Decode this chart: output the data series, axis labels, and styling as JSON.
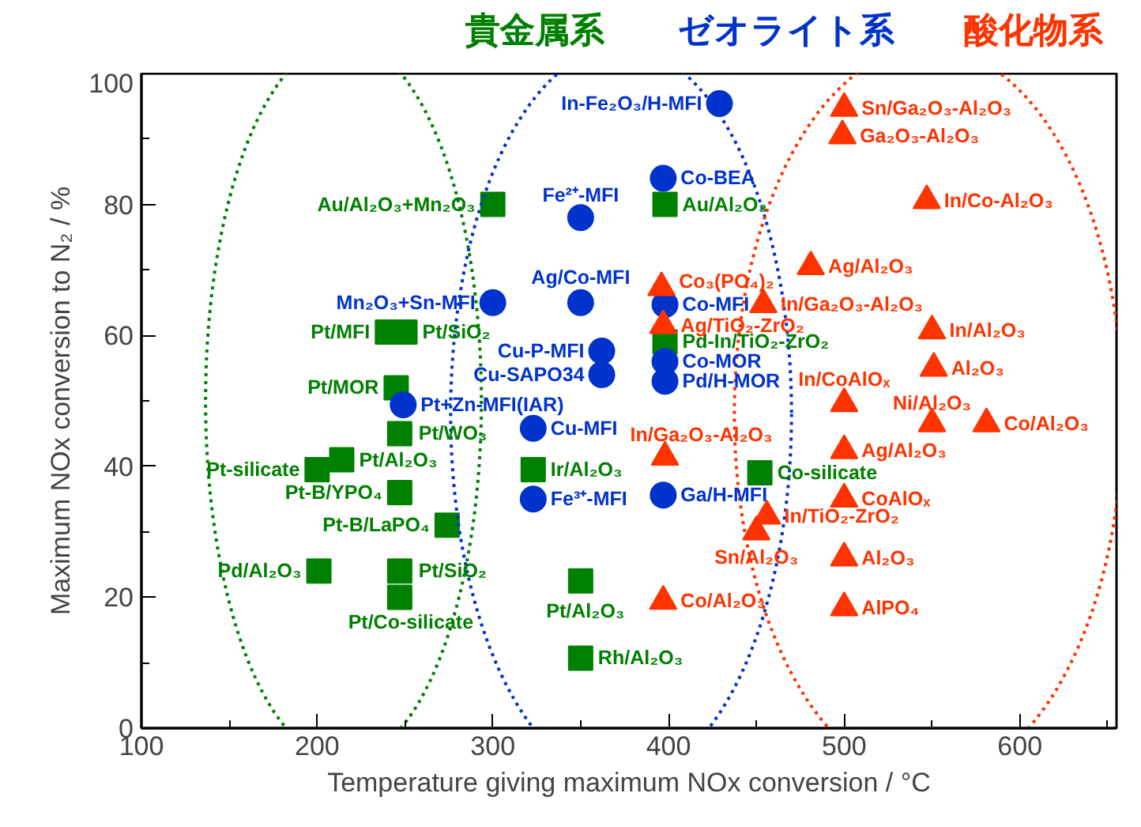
{
  "chart_data": {
    "type": "scatter",
    "xlabel": "Temperature giving maximum NOx conversion / °C",
    "ylabel": "Maximum NOx conversion to N₂ / %",
    "xlim": [
      100,
      655
    ],
    "ylim": [
      0,
      100
    ],
    "xticks": [
      100,
      {
        "value": 150,
        "label": null
      },
      200,
      {
        "value": 250,
        "label": null
      },
      300,
      {
        "value": 350,
        "label": null
      },
      400,
      {
        "value": 450,
        "label": null
      },
      500,
      {
        "value": 550,
        "label": null
      },
      600,
      {
        "value": 650,
        "label": null
      }
    ],
    "yticks": [
      0,
      {
        "value": 10,
        "label": null
      },
      20,
      {
        "value": 30,
        "label": null
      },
      40,
      {
        "value": 50,
        "label": null
      },
      60,
      {
        "value": 70,
        "label": null
      },
      80,
      {
        "value": 90,
        "label": null
      },
      100
    ],
    "series": [
      {
        "name": "貴金属系",
        "color": "#008000",
        "marker": "square",
        "x": [
          300,
          240,
          250,
          245,
          247,
          214,
          200,
          247,
          274,
          201,
          247,
          247,
          350,
          350,
          323,
          398,
          398,
          452
        ],
        "values": [
          80,
          60.5,
          60.5,
          52,
          45,
          41,
          39.5,
          36,
          31,
          24,
          24,
          20,
          22.5,
          10.7,
          39.5,
          80,
          59,
          39
        ]
      },
      {
        "name": "ゼオライト系",
        "color": "#0033cc",
        "marker": "circle",
        "x": [
          429,
          350,
          350,
          300,
          362,
          362,
          249,
          323,
          323,
          397,
          398,
          398,
          398,
          397
        ],
        "values": [
          95.4,
          78,
          65,
          65,
          57.6,
          54,
          49.4,
          45.8,
          35,
          84,
          64.7,
          56,
          53,
          35.6
        ]
      },
      {
        "name": "酸化物系",
        "color": "#ff3300",
        "marker": "triangle",
        "x": [
          500,
          499,
          547,
          481,
          396,
          454,
          397,
          550,
          551,
          500,
          550,
          581,
          398,
          500,
          500,
          456,
          450,
          500,
          500,
          397
        ],
        "values": [
          94.7,
          90.5,
          80.6,
          70.5,
          67.3,
          64.7,
          61.5,
          60.7,
          55,
          49.6,
          46.5,
          46.5,
          41.4,
          42.4,
          35,
          32.4,
          30,
          26,
          18.4,
          19.4
        ]
      }
    ],
    "annotations": [
      {
        "text": "Au/Al₂O₃+Mn₂O₃",
        "x": 300,
        "y": 80
      },
      {
        "text": "Pt/MFI",
        "x": 240,
        "y": 60.5
      },
      {
        "text": "Pt/SiO₂",
        "x": 250,
        "y": 60.5
      },
      {
        "text": "Pt/MOR",
        "x": 245,
        "y": 52
      },
      {
        "text": "Pt/WO₃",
        "x": 247,
        "y": 45
      },
      {
        "text": "Pt/Al₂O₃",
        "x": 214,
        "y": 41
      },
      {
        "text": "Pt-silicate",
        "x": 200,
        "y": 39.5
      },
      {
        "text": "Pt-B/YPO₄",
        "x": 247,
        "y": 36
      },
      {
        "text": "Pt-B/LaPO₄",
        "x": 274,
        "y": 31
      },
      {
        "text": "Pd/Al₂O₃",
        "x": 201,
        "y": 24
      },
      {
        "text": "Pt/SiO₂",
        "x": 247,
        "y": 24
      },
      {
        "text": "Pt/Co-silicate",
        "x": 247,
        "y": 20
      },
      {
        "text": "Pt/Al₂O₃",
        "x": 350,
        "y": 22.5
      },
      {
        "text": "Rh/Al₂O₃",
        "x": 350,
        "y": 10.7
      },
      {
        "text": "Ir/Al₂O₃",
        "x": 323,
        "y": 39.5
      },
      {
        "text": "Au/Al₂O₃",
        "x": 398,
        "y": 80
      },
      {
        "text": "Pd-In/TiO₂-ZrO₂",
        "x": 398,
        "y": 59
      },
      {
        "text": "Co-silicate",
        "x": 452,
        "y": 39
      },
      {
        "text": "In-Fe₂O₃/H-MFI",
        "x": 429,
        "y": 95.4
      },
      {
        "text": "Fe²⁺-MFI",
        "x": 350,
        "y": 78
      },
      {
        "text": "Ag/Co-MFI",
        "x": 350,
        "y": 65
      },
      {
        "text": "Mn₂O₃+Sn-MFI",
        "x": 300,
        "y": 65
      },
      {
        "text": "Cu-P-MFI",
        "x": 362,
        "y": 57.6
      },
      {
        "text": "Cu-SAPO34",
        "x": 362,
        "y": 54
      },
      {
        "text": "Pt+Zn-MFI(IAR)",
        "x": 249,
        "y": 49.4
      },
      {
        "text": "Cu-MFI",
        "x": 323,
        "y": 45.8
      },
      {
        "text": "Fe³⁺-MFI",
        "x": 323,
        "y": 35
      },
      {
        "text": "Co-BEA",
        "x": 397,
        "y": 84
      },
      {
        "text": "Co-MFI",
        "x": 398,
        "y": 64.7
      },
      {
        "text": "Co-MOR",
        "x": 398,
        "y": 56
      },
      {
        "text": "Pd/H-MOR",
        "x": 398,
        "y": 53
      },
      {
        "text": "Ga/H-MFI",
        "x": 397,
        "y": 35.6
      },
      {
        "text": "Sn/Ga₂O₃-Al₂O₃",
        "x": 500,
        "y": 94.7
      },
      {
        "text": "Ga₂O₃-Al₂O₃",
        "x": 499,
        "y": 90.5
      },
      {
        "text": "In/Co-Al₂O₃",
        "x": 547,
        "y": 80.6
      },
      {
        "text": "Ag/Al₂O₃",
        "x": 481,
        "y": 70.5
      },
      {
        "text": "Co₃(PO₄)₂",
        "x": 396,
        "y": 67.3
      },
      {
        "text": "In/Ga₂O₃-Al₂O₃",
        "x": 454,
        "y": 64.7
      },
      {
        "text": "Ag/TiO₂-ZrO₂",
        "x": 397,
        "y": 61.5
      },
      {
        "text": "In/Al₂O₃",
        "x": 550,
        "y": 60.7
      },
      {
        "text": "Al₂O₃",
        "x": 551,
        "y": 55
      },
      {
        "text": "In/CoAlOₓ",
        "x": 500,
        "y": 49.6
      },
      {
        "text": "Ni/Al₂O₃",
        "x": 550,
        "y": 46.5
      },
      {
        "text": "Co/Al₂O₃",
        "x": 581,
        "y": 46.5
      },
      {
        "text": "In/Ga₂O₃-Al₂O₃",
        "x": 398,
        "y": 41.4
      },
      {
        "text": "Ag/Al₂O₃",
        "x": 500,
        "y": 42.4
      },
      {
        "text": "CoAlOₓ",
        "x": 500,
        "y": 35
      },
      {
        "text": "In/TiO₂-ZrO₂",
        "x": 456,
        "y": 32.4
      },
      {
        "text": "Sn/Al₂O₃",
        "x": 450,
        "y": 30
      },
      {
        "text": "Al₂O₃",
        "x": 500,
        "y": 26
      },
      {
        "text": "AlPO₄",
        "x": 500,
        "y": 18.4
      },
      {
        "text": "Co/Al₂O₃",
        "x": 397,
        "y": 19.4
      }
    ]
  }
}
